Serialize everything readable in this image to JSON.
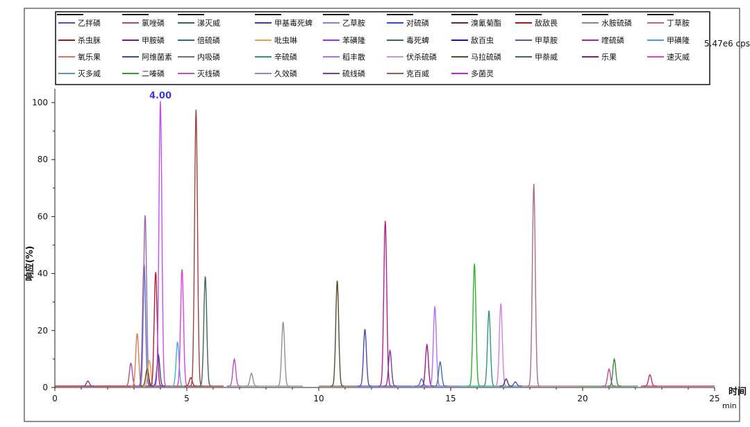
{
  "chart_data": {
    "type": "line",
    "title": "",
    "xlabel": "时间",
    "xunit": "min",
    "ylabel": "响应(%)",
    "scale_label": "5.47e6 cps",
    "apex_label": "4.00",
    "xlim": [
      0,
      25
    ],
    "ylim": [
      0,
      105
    ],
    "x_ticks": [
      0,
      5,
      10,
      15,
      20,
      25
    ],
    "y_ticks": [
      0,
      20,
      40,
      60,
      80,
      100
    ],
    "grid": false,
    "legend_placement": "top",
    "legend": [
      {
        "name": "乙拌磷",
        "color": "#5b4fa8"
      },
      {
        "name": "氯唑磷",
        "color": "#a0507c"
      },
      {
        "name": "涕灭威",
        "color": "#2e6b5c"
      },
      {
        "name": "甲基毒死蜱",
        "color": "#4a3a8a"
      },
      {
        "name": "乙草胺",
        "color": "#8a7fd0"
      },
      {
        "name": "对硫磷",
        "color": "#2a4fd0"
      },
      {
        "name": "溴氰菊酯",
        "color": "#6a2040"
      },
      {
        "name": "敌敌畏",
        "color": "#9a1a1a"
      },
      {
        "name": "水胺硫磷",
        "color": "#888888"
      },
      {
        "name": "丁草胺",
        "color": "#b06a8a"
      },
      {
        "name": "杀虫脒",
        "color": "#a01c1c"
      },
      {
        "name": "甲胺磷",
        "color": "#7a1a8a"
      },
      {
        "name": "倍硫磷",
        "color": "#2a6a8a"
      },
      {
        "name": "吡虫啉",
        "color": "#f0a040"
      },
      {
        "name": "苯磺隆",
        "color": "#a030f0"
      },
      {
        "name": "毒死蜱",
        "color": "#3a6a4a"
      },
      {
        "name": "敌百虫",
        "color": "#1010e0"
      },
      {
        "name": "甲草胺",
        "color": "#5a5a9a"
      },
      {
        "name": "喹硫磷",
        "color": "#b020b0"
      },
      {
        "name": "甲磺隆",
        "color": "#40a0e0"
      },
      {
        "name": "氧乐果",
        "color": "#e07060"
      },
      {
        "name": "阿维菌素",
        "color": "#3050b0"
      },
      {
        "name": "内吸磷",
        "color": "#707070"
      },
      {
        "name": "辛硫磷",
        "color": "#2a9a7a"
      },
      {
        "name": "稻丰散",
        "color": "#b070f0"
      },
      {
        "name": "伏杀硫磷",
        "color": "#d090e0"
      },
      {
        "name": "马拉硫磷",
        "color": "#5a4a2a"
      },
      {
        "name": "甲萘威",
        "color": "#3a6a5a"
      },
      {
        "name": "乐果",
        "color": "#8a1a7a"
      },
      {
        "name": "速灭威",
        "color": "#e040e0"
      },
      {
        "name": "灭多威",
        "color": "#6090c0"
      },
      {
        "name": "二嗪磷",
        "color": "#30a030"
      },
      {
        "name": "灭线磷",
        "color": "#c050c0"
      },
      {
        "name": "久效磷",
        "color": "#a080c0"
      },
      {
        "name": "硫线磷",
        "color": "#7a3a9a"
      },
      {
        "name": "克百威",
        "color": "#a05a4a"
      },
      {
        "name": "多菌灵",
        "color": "#c020e0"
      }
    ],
    "peaks": [
      {
        "rt": 1.25,
        "height": 1.8,
        "color": "#7a3aa8"
      },
      {
        "rt": 2.88,
        "height": 8,
        "color": "#b04a9a"
      },
      {
        "rt": 3.12,
        "height": 18.5,
        "color": "#e07a50"
      },
      {
        "rt": 3.38,
        "height": 43,
        "color": "#4070c0"
      },
      {
        "rt": 3.42,
        "height": 60,
        "color": "#a060b0"
      },
      {
        "rt": 3.5,
        "height": 6,
        "color": "#5a3a2a"
      },
      {
        "rt": 3.58,
        "height": 9,
        "color": "#f0a040"
      },
      {
        "rt": 3.82,
        "height": 40,
        "color": "#b02030"
      },
      {
        "rt": 3.92,
        "height": 11,
        "color": "#3040b0"
      },
      {
        "rt": 4.0,
        "height": 100,
        "color": "#c050f0"
      },
      {
        "rt": 4.65,
        "height": 15.5,
        "color": "#40b0e0"
      },
      {
        "rt": 4.82,
        "height": 41,
        "color": "#e040e0"
      },
      {
        "rt": 5.15,
        "height": 3,
        "color": "#a03030"
      },
      {
        "rt": 5.35,
        "height": 97,
        "color": "#a04040"
      },
      {
        "rt": 5.7,
        "height": 38.5,
        "color": "#3a6a5a"
      },
      {
        "rt": 6.8,
        "height": 9.5,
        "color": "#c050c0"
      },
      {
        "rt": 7.45,
        "height": 4.5,
        "color": "#909090"
      },
      {
        "rt": 8.65,
        "height": 22.5,
        "color": "#909090"
      },
      {
        "rt": 10.7,
        "height": 37,
        "color": "#5a4a2a"
      },
      {
        "rt": 11.75,
        "height": 20,
        "color": "#4a4ab0"
      },
      {
        "rt": 12.52,
        "height": 58,
        "color": "#b02090"
      },
      {
        "rt": 12.7,
        "height": 12.5,
        "color": "#7a3a9a"
      },
      {
        "rt": 13.9,
        "height": 2.5,
        "color": "#4a6ad0"
      },
      {
        "rt": 14.1,
        "height": 14.5,
        "color": "#9a2080"
      },
      {
        "rt": 14.4,
        "height": 28,
        "color": "#b070f0"
      },
      {
        "rt": 14.6,
        "height": 8.5,
        "color": "#4070a0"
      },
      {
        "rt": 15.9,
        "height": 43,
        "color": "#30b030"
      },
      {
        "rt": 16.45,
        "height": 26.5,
        "color": "#2a9a7a"
      },
      {
        "rt": 16.9,
        "height": 29,
        "color": "#d080e0"
      },
      {
        "rt": 17.1,
        "height": 2.5,
        "color": "#5a2a8a"
      },
      {
        "rt": 17.45,
        "height": 1.5,
        "color": "#5050b0"
      },
      {
        "rt": 18.15,
        "height": 71,
        "color": "#b06a8a"
      },
      {
        "rt": 21.0,
        "height": 6,
        "color": "#c04a9a"
      },
      {
        "rt": 21.2,
        "height": 9.5,
        "color": "#3a8a3a"
      },
      {
        "rt": 22.55,
        "height": 4,
        "color": "#c03060"
      }
    ],
    "baselines": [
      {
        "x": [
          0,
          3.2
        ],
        "color": "#b02020"
      },
      {
        "x": [
          3.2,
          4.2
        ],
        "color": "#7a2a9a"
      },
      {
        "x": [
          4.2,
          6.4
        ],
        "color": "#a04a3a"
      },
      {
        "x": [
          6.5,
          9.4
        ],
        "color": "#9a9a9a"
      },
      {
        "x": [
          10.0,
          11.4
        ],
        "color": "#8a7a6a"
      },
      {
        "x": [
          11.4,
          13.5
        ],
        "color": "#5a6ac0"
      },
      {
        "x": [
          13.5,
          15.4
        ],
        "color": "#6a80d0"
      },
      {
        "x": [
          15.4,
          17.6
        ],
        "color": "#40b0a0"
      },
      {
        "x": [
          17.6,
          19.8
        ],
        "color": "#b07a9a"
      },
      {
        "x": [
          19.8,
          22.1
        ],
        "color": "#6a9a6a"
      },
      {
        "x": [
          22.2,
          25.0
        ],
        "color": "#c04a70"
      }
    ]
  }
}
